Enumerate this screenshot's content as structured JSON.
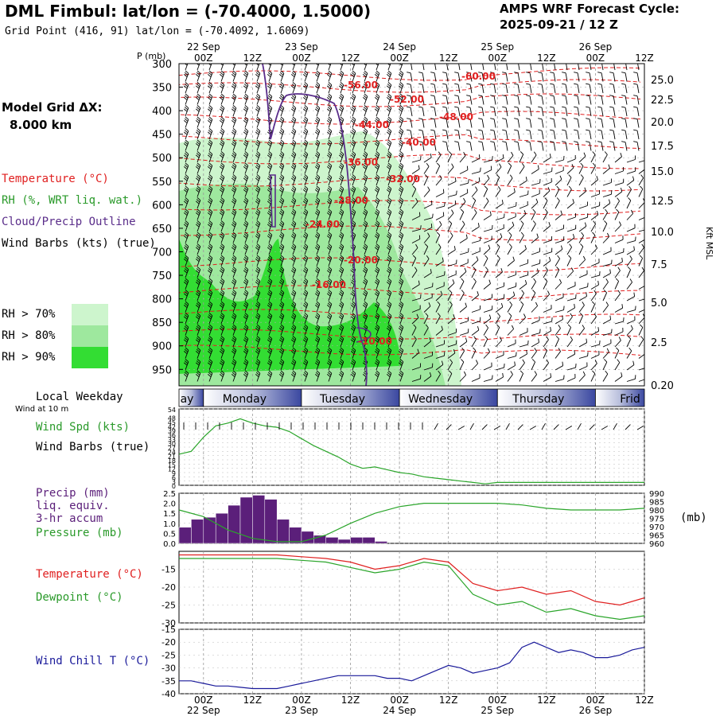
{
  "header": {
    "title": "DML Fimbul:  lat/lon = (-70.4000, 1.5000)",
    "subtitle": "Grid Point (416, 91) lat/lon = (-70.4092, 1.6069)",
    "cycle_line1": "AMPS WRF Forecast Cycle:",
    "cycle_line2": "2025-09-21 / 12  Z"
  },
  "left_labels": {
    "model_grid_line1": "Model Grid ΔX:",
    "model_grid_line2": "8.000 km",
    "temperature": "Temperature (°C)",
    "rh": "RH (%, WRT liq. wat.)",
    "cloud": "Cloud/Precip Outline",
    "wind_barbs": "Wind Barbs (kts) (true)",
    "rh70": "RH > 70%",
    "rh80": "RH > 80%",
    "rh90": "RH > 90%",
    "local_weekday": "Local Weekday",
    "wind_at_10m": "Wind at 10 m",
    "wind_spd": "Wind Spd (kts)",
    "wind_barbs2": "Wind Barbs (true)",
    "precip1": "Precip (mm)",
    "precip2": "liq. equiv.",
    "precip3": "3-hr accum",
    "pressure": "Pressure (mb)",
    "pressure_unit": "(mb)",
    "temp2": "Temperature (°C)",
    "dewpoint": "Dewpoint (°C)",
    "wind_chill": "Wind Chill T (°C)"
  },
  "colors": {
    "temperature": "#e02020",
    "rh": "#2a9a2a",
    "cloud": "#5a2d8a",
    "precip": "#5b1f7a",
    "windchill": "#1a1a9a",
    "rh70": "#cdf5cd",
    "rh80": "#9ee89e",
    "rh90": "#33dd33"
  },
  "time_axis": {
    "ticks_top": [
      "00Z",
      "12Z",
      "00Z",
      "12Z",
      "00Z",
      "12Z",
      "00Z",
      "12Z",
      "00Z",
      "12Z"
    ],
    "dates_top": [
      "22 Sep",
      "23 Sep",
      "24 Sep",
      "25 Sep",
      "26 Sep"
    ],
    "ticks_bottom": [
      "00Z",
      "12Z",
      "00Z",
      "12Z",
      "00Z",
      "12Z",
      "00Z",
      "12Z",
      "00Z",
      "12Z"
    ],
    "dates_bottom": [
      "22 Sep",
      "23 Sep",
      "24 Sep",
      "25 Sep",
      "26 Sep"
    ],
    "weekdays": [
      "ay",
      "Monday",
      "Tuesday",
      "Wednesday",
      "Thursday",
      "Frid"
    ]
  },
  "chart_data": [
    {
      "type": "heatmap",
      "ylabel": "P (mb)",
      "ylabel_right": "Kft MSL",
      "y_ticks": [
        "300",
        "350",
        "400",
        "450",
        "500",
        "550",
        "600",
        "650",
        "700",
        "750",
        "800",
        "850",
        "900",
        "950"
      ],
      "y_ticks_right": [
        "25.0",
        "22.5",
        "20.0",
        "17.5",
        "15.0",
        "12.5",
        "10.0",
        "7.5",
        "5.0",
        "2.5",
        "0.20"
      ],
      "temperature_labels": [
        "-60.00",
        "-56.00",
        "-52.00",
        "-48.00",
        "-44.00",
        "-40.00",
        "-36.00",
        "-32.00",
        "-28.00",
        "-24.00",
        "-20.00",
        "-16.00",
        "-10.00"
      ]
    },
    {
      "type": "line",
      "name": "wind_speed",
      "y_ticks": [
        "54",
        "48",
        "45",
        "42",
        "39",
        "36",
        "33",
        "30",
        "27",
        "24",
        "21",
        "18",
        "15",
        "12",
        "9",
        "6",
        "3",
        "0"
      ],
      "ylim": [
        0,
        54
      ],
      "x": [
        0,
        3,
        6,
        9,
        12,
        15,
        18,
        21,
        24,
        27,
        30,
        33,
        36,
        39,
        42,
        45,
        48,
        51,
        54,
        57,
        60,
        63,
        66,
        69,
        72,
        75,
        78,
        81,
        84,
        87,
        90,
        93,
        96,
        99,
        102,
        105,
        108,
        111,
        114
      ],
      "values": [
        22,
        24,
        34,
        42,
        44,
        47,
        44,
        42,
        41,
        38,
        33,
        28,
        24,
        20,
        15,
        12,
        13,
        11,
        9,
        8,
        6,
        5,
        4,
        3,
        2,
        1,
        2,
        2,
        2,
        2,
        2,
        2,
        2,
        2,
        2,
        2,
        2,
        2,
        2
      ]
    },
    {
      "type": "bar",
      "name": "precip",
      "y_ticks": [
        "2.5",
        "2.0",
        "1.5",
        "1.0",
        "0.5",
        "0.0"
      ],
      "ylim": [
        0,
        2.5
      ],
      "x": [
        0,
        3,
        6,
        9,
        12,
        15,
        18,
        21,
        24,
        27,
        30,
        33
      ],
      "values": [
        0.8,
        1.2,
        1.3,
        1.5,
        1.9,
        2.3,
        2.4,
        2.2,
        1.2,
        0.8,
        0.6,
        0.4
      ],
      "extra": [
        [
          36,
          0.3
        ],
        [
          39,
          0.2
        ],
        [
          42,
          0.3
        ],
        [
          45,
          0.3
        ],
        [
          48,
          0.1
        ]
      ]
    },
    {
      "type": "line",
      "name": "pressure",
      "y_ticks": [
        "990",
        "985",
        "980",
        "975",
        "970",
        "965",
        "960"
      ],
      "ylim": [
        960,
        990
      ],
      "x": [
        0,
        6,
        12,
        18,
        24,
        30,
        36,
        42,
        48,
        54,
        60,
        66,
        72,
        78,
        84,
        90,
        96,
        102,
        108,
        114
      ],
      "values": [
        980,
        976,
        968,
        963,
        961,
        961,
        965,
        972,
        978,
        982,
        984,
        984,
        984,
        984,
        983,
        981,
        980,
        980,
        980,
        981
      ]
    },
    {
      "type": "line",
      "name": "temperature_dewpoint",
      "y_ticks": [
        "-15",
        "-20",
        "-25",
        "-30"
      ],
      "ylim": [
        -30,
        -10
      ],
      "x": [
        0,
        6,
        12,
        18,
        24,
        30,
        36,
        42,
        48,
        54,
        60,
        66,
        72,
        78,
        84,
        90,
        96,
        102,
        108,
        114
      ],
      "series": [
        {
          "values": [
            -11,
            -11,
            -11,
            -11,
            -11,
            -11.5,
            -12,
            -13,
            -15,
            -14,
            -12,
            -13,
            -19,
            -21,
            -20,
            -22,
            -21,
            -24,
            -25,
            -23
          ]
        },
        {
          "values": [
            -12,
            -12,
            -12,
            -12,
            -12,
            -12.5,
            -13,
            -14.5,
            -16,
            -15,
            -13,
            -14,
            -22,
            -25,
            -24,
            -27,
            -26,
            -28,
            -29,
            -28
          ]
        }
      ]
    },
    {
      "type": "line",
      "name": "wind_chill",
      "y_ticks": [
        "-15",
        "-20",
        "-25",
        "-30",
        "-35",
        "-40"
      ],
      "ylim": [
        -40,
        -15
      ],
      "x": [
        0,
        3,
        6,
        9,
        12,
        15,
        18,
        21,
        24,
        27,
        30,
        33,
        36,
        39,
        42,
        45,
        48,
        51,
        54,
        57,
        60,
        63,
        66,
        69,
        72,
        75,
        78,
        81,
        84,
        87,
        90,
        93,
        96,
        99,
        102,
        105,
        108,
        111,
        114
      ],
      "values": [
        -35,
        -35,
        -36,
        -37,
        -37,
        -37.5,
        -38,
        -38,
        -38,
        -37,
        -36,
        -35,
        -34,
        -33,
        -33,
        -33,
        -33,
        -34,
        -34,
        -35,
        -33,
        -31,
        -29,
        -30,
        -32,
        -31,
        -30,
        -28,
        -22,
        -20,
        -22,
        -24,
        -23,
        -24,
        -26,
        -26,
        -25,
        -23,
        -22
      ]
    }
  ]
}
